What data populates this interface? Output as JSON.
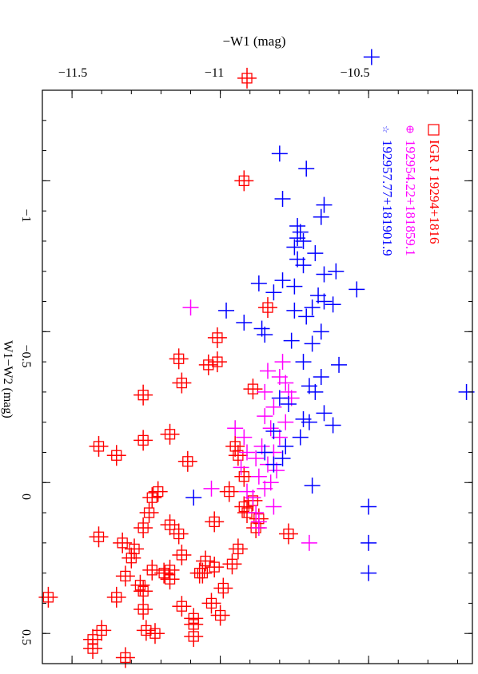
{
  "chart_data": {
    "type": "scatter",
    "title": "",
    "xlabel": "W1−W2 (mag)",
    "ylabel": "−W1 (mag)",
    "xlim": [
      -1.3,
      0.6
    ],
    "ylim": [
      -11.6,
      -10.15
    ],
    "xticks": [
      -1,
      -0.5,
      0,
      0.5
    ],
    "xtick_labels": [
      "−1",
      "−0.5",
      "0",
      "0.5"
    ],
    "yticks": [
      -11.5,
      -11,
      -10.5
    ],
    "ytick_labels": [
      "−11.5",
      "−11",
      "−10.5"
    ],
    "grid": false,
    "legend_position": "top-right",
    "colors": {
      "red": "#ff0000",
      "magenta": "#ff00ff",
      "blue": "#0000ff",
      "axis": "#000000"
    },
    "legend": [
      {
        "label": "IGR J 19294+1816",
        "symbol": "square-icon",
        "color": "#ff0000"
      },
      {
        "label": "192954.22+181859.1",
        "symbol": "circle-plus-icon",
        "color": "#ff00ff"
      },
      {
        "label": "192957.77+181901.9",
        "symbol": "star-icon",
        "color": "#0000ff"
      }
    ],
    "series": [
      {
        "name": "IGR J 19294+1816",
        "color": "#ff0000",
        "marker": "square-plus",
        "points": [
          [
            -1.34,
            -10.91
          ],
          [
            -1.0,
            -10.92
          ],
          [
            -0.58,
            -10.84
          ],
          [
            -0.48,
            -11.01
          ],
          [
            -0.4,
            -11.01
          ],
          [
            -0.39,
            -11.04
          ],
          [
            -0.41,
            -11.14
          ],
          [
            -0.33,
            -11.13
          ],
          [
            -0.29,
            -11.26
          ],
          [
            -0.31,
            -10.89
          ],
          [
            -0.14,
            -11.26
          ],
          [
            -0.16,
            -11.17
          ],
          [
            -0.12,
            -11.41
          ],
          [
            -0.09,
            -11.35
          ],
          [
            -0.09,
            -10.94
          ],
          [
            -0.07,
            -11.11
          ],
          [
            -0.12,
            -10.95
          ],
          [
            0.03,
            -11.21
          ],
          [
            0.05,
            -11.23
          ],
          [
            0.03,
            -10.97
          ],
          [
            0.08,
            -10.92
          ],
          [
            0.1,
            -11.24
          ],
          [
            0.14,
            -11.17
          ],
          [
            0.13,
            -11.02
          ],
          [
            0.15,
            -11.26
          ],
          [
            0.17,
            -11.14
          ],
          [
            0.18,
            -11.41
          ],
          [
            0.17,
            -10.77
          ],
          [
            0.2,
            -11.33
          ],
          [
            0.22,
            -11.29
          ],
          [
            0.22,
            -10.94
          ],
          [
            0.24,
            -11.13
          ],
          [
            0.25,
            -11.3
          ],
          [
            0.26,
            -11.05
          ],
          [
            0.28,
            -11.02
          ],
          [
            0.29,
            -11.17
          ],
          [
            0.29,
            -11.23
          ],
          [
            0.3,
            -11.19
          ],
          [
            0.31,
            -11.32
          ],
          [
            0.3,
            -11.06
          ],
          [
            0.3,
            -11.07
          ],
          [
            0.32,
            -11.17
          ],
          [
            0.34,
            -11.27
          ],
          [
            0.35,
            -10.99
          ],
          [
            0.36,
            -11.26
          ],
          [
            0.38,
            -11.35
          ],
          [
            0.38,
            -11.58
          ],
          [
            0.4,
            -11.03
          ],
          [
            0.41,
            -11.13
          ],
          [
            0.42,
            -11.26
          ],
          [
            0.44,
            -11.0
          ],
          [
            0.45,
            -11.09
          ],
          [
            0.47,
            -11.09
          ],
          [
            0.49,
            -11.25
          ],
          [
            0.49,
            -11.4
          ],
          [
            0.5,
            -11.22
          ],
          [
            0.51,
            -11.09
          ],
          [
            0.52,
            -11.43
          ],
          [
            0.55,
            -11.43
          ],
          [
            0.58,
            -11.32
          ],
          [
            0.1,
            -10.91
          ],
          [
            0.12,
            -10.87
          ],
          [
            0.06,
            -10.89
          ],
          [
            -0.02,
            -10.92
          ],
          [
            0.27,
            -10.96
          ],
          [
            0.15,
            -10.88
          ]
        ]
      },
      {
        "name": "192954.22+181859.1",
        "color": "#ff00ff",
        "marker": "plus",
        "points": [
          [
            -0.58,
            -11.1
          ],
          [
            -0.4,
            -10.79
          ],
          [
            -0.37,
            -10.84
          ],
          [
            -0.35,
            -10.8
          ],
          [
            -0.33,
            -10.78
          ],
          [
            -0.3,
            -10.85
          ],
          [
            -0.28,
            -10.76
          ],
          [
            -0.25,
            -10.82
          ],
          [
            -0.22,
            -10.85
          ],
          [
            -0.2,
            -10.78
          ],
          [
            -0.18,
            -10.83
          ],
          [
            -0.15,
            -10.8
          ],
          [
            -0.12,
            -10.86
          ],
          [
            -0.1,
            -10.82
          ],
          [
            -0.08,
            -10.88
          ],
          [
            -0.06,
            -10.84
          ],
          [
            -0.04,
            -10.81
          ],
          [
            -0.02,
            -10.87
          ],
          [
            0.0,
            -10.83
          ],
          [
            0.02,
            -10.85
          ],
          [
            0.05,
            -10.89
          ],
          [
            0.08,
            -10.82
          ],
          [
            -0.18,
            -10.95
          ],
          [
            -0.15,
            -10.92
          ],
          [
            -0.05,
            -10.93
          ],
          [
            0.03,
            -10.91
          ],
          [
            0.1,
            -10.88
          ],
          [
            0.15,
            -10.87
          ],
          [
            0.2,
            -10.7
          ],
          [
            -0.1,
            -10.91
          ],
          [
            0.02,
            -11.03
          ],
          [
            -0.3,
            -10.77
          ],
          [
            0.13,
            -10.87
          ]
        ]
      },
      {
        "name": "192957.77+181901.9",
        "color": "#0000ff",
        "marker": "plus",
        "points": [
          [
            -1.41,
            -10.49
          ],
          [
            -1.09,
            -10.8
          ],
          [
            -1.04,
            -10.71
          ],
          [
            -0.94,
            -10.79
          ],
          [
            -0.92,
            -10.65
          ],
          [
            -0.88,
            -10.66
          ],
          [
            -0.85,
            -10.74
          ],
          [
            -0.83,
            -10.73
          ],
          [
            -0.81,
            -10.74
          ],
          [
            -0.8,
            -10.72
          ],
          [
            -0.78,
            -10.75
          ],
          [
            -0.76,
            -10.68
          ],
          [
            -0.74,
            -10.74
          ],
          [
            -0.72,
            -10.72
          ],
          [
            -0.7,
            -10.61
          ],
          [
            -0.69,
            -10.65
          ],
          [
            -0.67,
            -10.79
          ],
          [
            -0.66,
            -10.87
          ],
          [
            -0.65,
            -10.75
          ],
          [
            -0.63,
            -10.82
          ],
          [
            -0.62,
            -10.67
          ],
          [
            -0.6,
            -10.65
          ],
          [
            -0.58,
            -10.69
          ],
          [
            -0.57,
            -10.75
          ],
          [
            -0.57,
            -10.98
          ],
          [
            -0.55,
            -10.71
          ],
          [
            -0.53,
            -10.92
          ],
          [
            -0.51,
            -10.86
          ],
          [
            -0.5,
            -10.66
          ],
          [
            -0.49,
            -10.85
          ],
          [
            -0.47,
            -10.76
          ],
          [
            -0.46,
            -10.69
          ],
          [
            -0.64,
            -10.54
          ],
          [
            -0.59,
            -10.62
          ],
          [
            -0.4,
            -10.72
          ],
          [
            -0.39,
            -10.6
          ],
          [
            -0.35,
            -10.66
          ],
          [
            -0.32,
            -10.7
          ],
          [
            -0.3,
            -10.68
          ],
          [
            -0.28,
            -10.8
          ],
          [
            -0.26,
            -10.77
          ],
          [
            -0.23,
            -10.65
          ],
          [
            -0.21,
            -10.72
          ],
          [
            -0.19,
            -10.62
          ],
          [
            -0.17,
            -10.82
          ],
          [
            -0.15,
            -10.73
          ],
          [
            -0.12,
            -10.78
          ],
          [
            -0.1,
            -10.85
          ],
          [
            -0.08,
            -10.79
          ],
          [
            -0.06,
            -10.82
          ],
          [
            0.05,
            -11.09
          ],
          [
            0.01,
            -10.69
          ],
          [
            -0.3,
            -10.17
          ],
          [
            0.08,
            -10.5
          ],
          [
            0.2,
            -10.5
          ],
          [
            0.3,
            -10.5
          ],
          [
            -0.2,
            -10.7
          ]
        ]
      }
    ]
  }
}
